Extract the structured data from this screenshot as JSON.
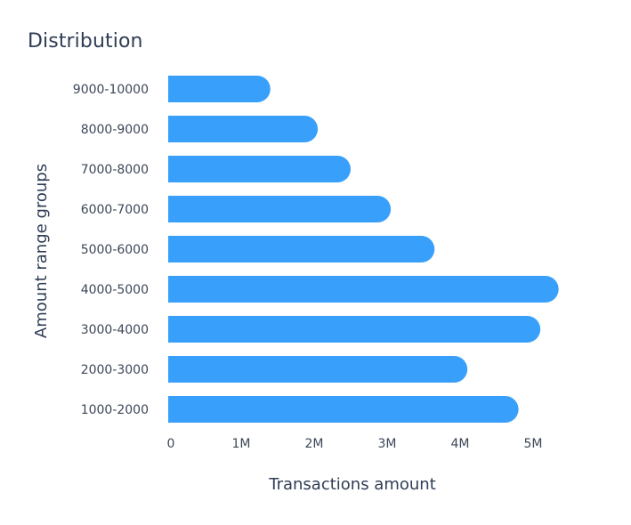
{
  "chart_data": {
    "type": "bar",
    "orientation": "horizontal",
    "title": "Distribution",
    "xlabel": "Transactions amount",
    "ylabel": "Amount range groups",
    "categories": [
      "1000-2000",
      "2000-3000",
      "3000-4000",
      "4000-5000",
      "5000-6000",
      "6000-7000",
      "7000-8000",
      "8000-9000",
      "9000-10000"
    ],
    "values": [
      4800000,
      4100000,
      5100000,
      5350000,
      3650000,
      3050000,
      2500000,
      2050000,
      1400000
    ],
    "x_ticks": [
      {
        "value": 0,
        "label": "0"
      },
      {
        "value": 1000000,
        "label": "1M"
      },
      {
        "value": 2000000,
        "label": "2M"
      },
      {
        "value": 3000000,
        "label": "3M"
      },
      {
        "value": 4000000,
        "label": "4M"
      },
      {
        "value": 5000000,
        "label": "5M"
      }
    ],
    "xlim": [
      0,
      5500000
    ],
    "grid": false,
    "legend": "none",
    "bar_color": "#38a0fb"
  }
}
